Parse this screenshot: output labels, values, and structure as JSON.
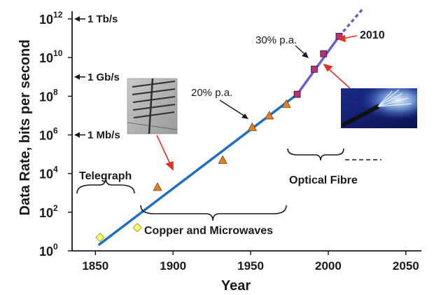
{
  "chart_data": {
    "type": "scatter",
    "xlabel": "Year",
    "ylabel": "Data Rate, bits per second",
    "xlim": [
      1835,
      2060
    ],
    "ylim_log10": [
      0,
      12.4
    ],
    "y_scale": "log",
    "x_ticks": [
      "1850",
      "1900",
      "1950",
      "2000",
      "2050"
    ],
    "y_ticks": [
      {
        "base": "10",
        "exp": "12",
        "log": 12
      },
      {
        "base": "10",
        "exp": "10",
        "log": 10
      },
      {
        "base": "10",
        "exp": "8",
        "log": 8
      },
      {
        "base": "10",
        "exp": "6",
        "log": 6
      },
      {
        "base": "10",
        "exp": "4",
        "log": 4
      },
      {
        "base": "10",
        "exp": "2",
        "log": 2
      },
      {
        "base": "10",
        "exp": "0",
        "log": 0
      }
    ],
    "rate_labels": [
      {
        "text": "1 Tb/s",
        "log": 12
      },
      {
        "text": "1 Gb/s",
        "log": 9
      },
      {
        "text": "1 Mb/s",
        "log": 6
      }
    ],
    "series": [
      {
        "marker": "diamond",
        "color": "#ffff66",
        "points": [
          [
            1853,
            0.7
          ],
          [
            1877,
            1.2
          ]
        ]
      },
      {
        "marker": "triangle",
        "color": "#d9822b",
        "points": [
          [
            1890,
            3.3
          ],
          [
            1932,
            4.7
          ],
          [
            1951,
            6.4
          ],
          [
            1962,
            7.0
          ],
          [
            1973,
            7.6
          ]
        ]
      },
      {
        "marker": "square",
        "color": "#b0347a",
        "points": [
          [
            1980,
            8.1
          ],
          [
            1991,
            9.4
          ],
          [
            1997,
            10.2
          ],
          [
            2007,
            11.1
          ]
        ]
      }
    ],
    "trend_lines": [
      {
        "color": "#1f6fbf",
        "from": [
          1852,
          0.3
        ],
        "to": [
          1980,
          8.1
        ]
      },
      {
        "color": "#6a5fd0",
        "from": [
          1980,
          8.1
        ],
        "to": [
          2007,
          11.1
        ]
      },
      {
        "color": "#6a5fd0",
        "dashed": true,
        "from": [
          2007,
          11.1
        ],
        "to": [
          2022,
          12.5
        ]
      }
    ],
    "annotations": {
      "growth_copper": "20% p.a.",
      "growth_fibre": "30% p.a.",
      "year_marker": "2010",
      "era_telegraph": "Telegraph",
      "era_copper": "Copper and Microwaves",
      "era_fibre": "Optical Fibre"
    },
    "grid": false
  }
}
